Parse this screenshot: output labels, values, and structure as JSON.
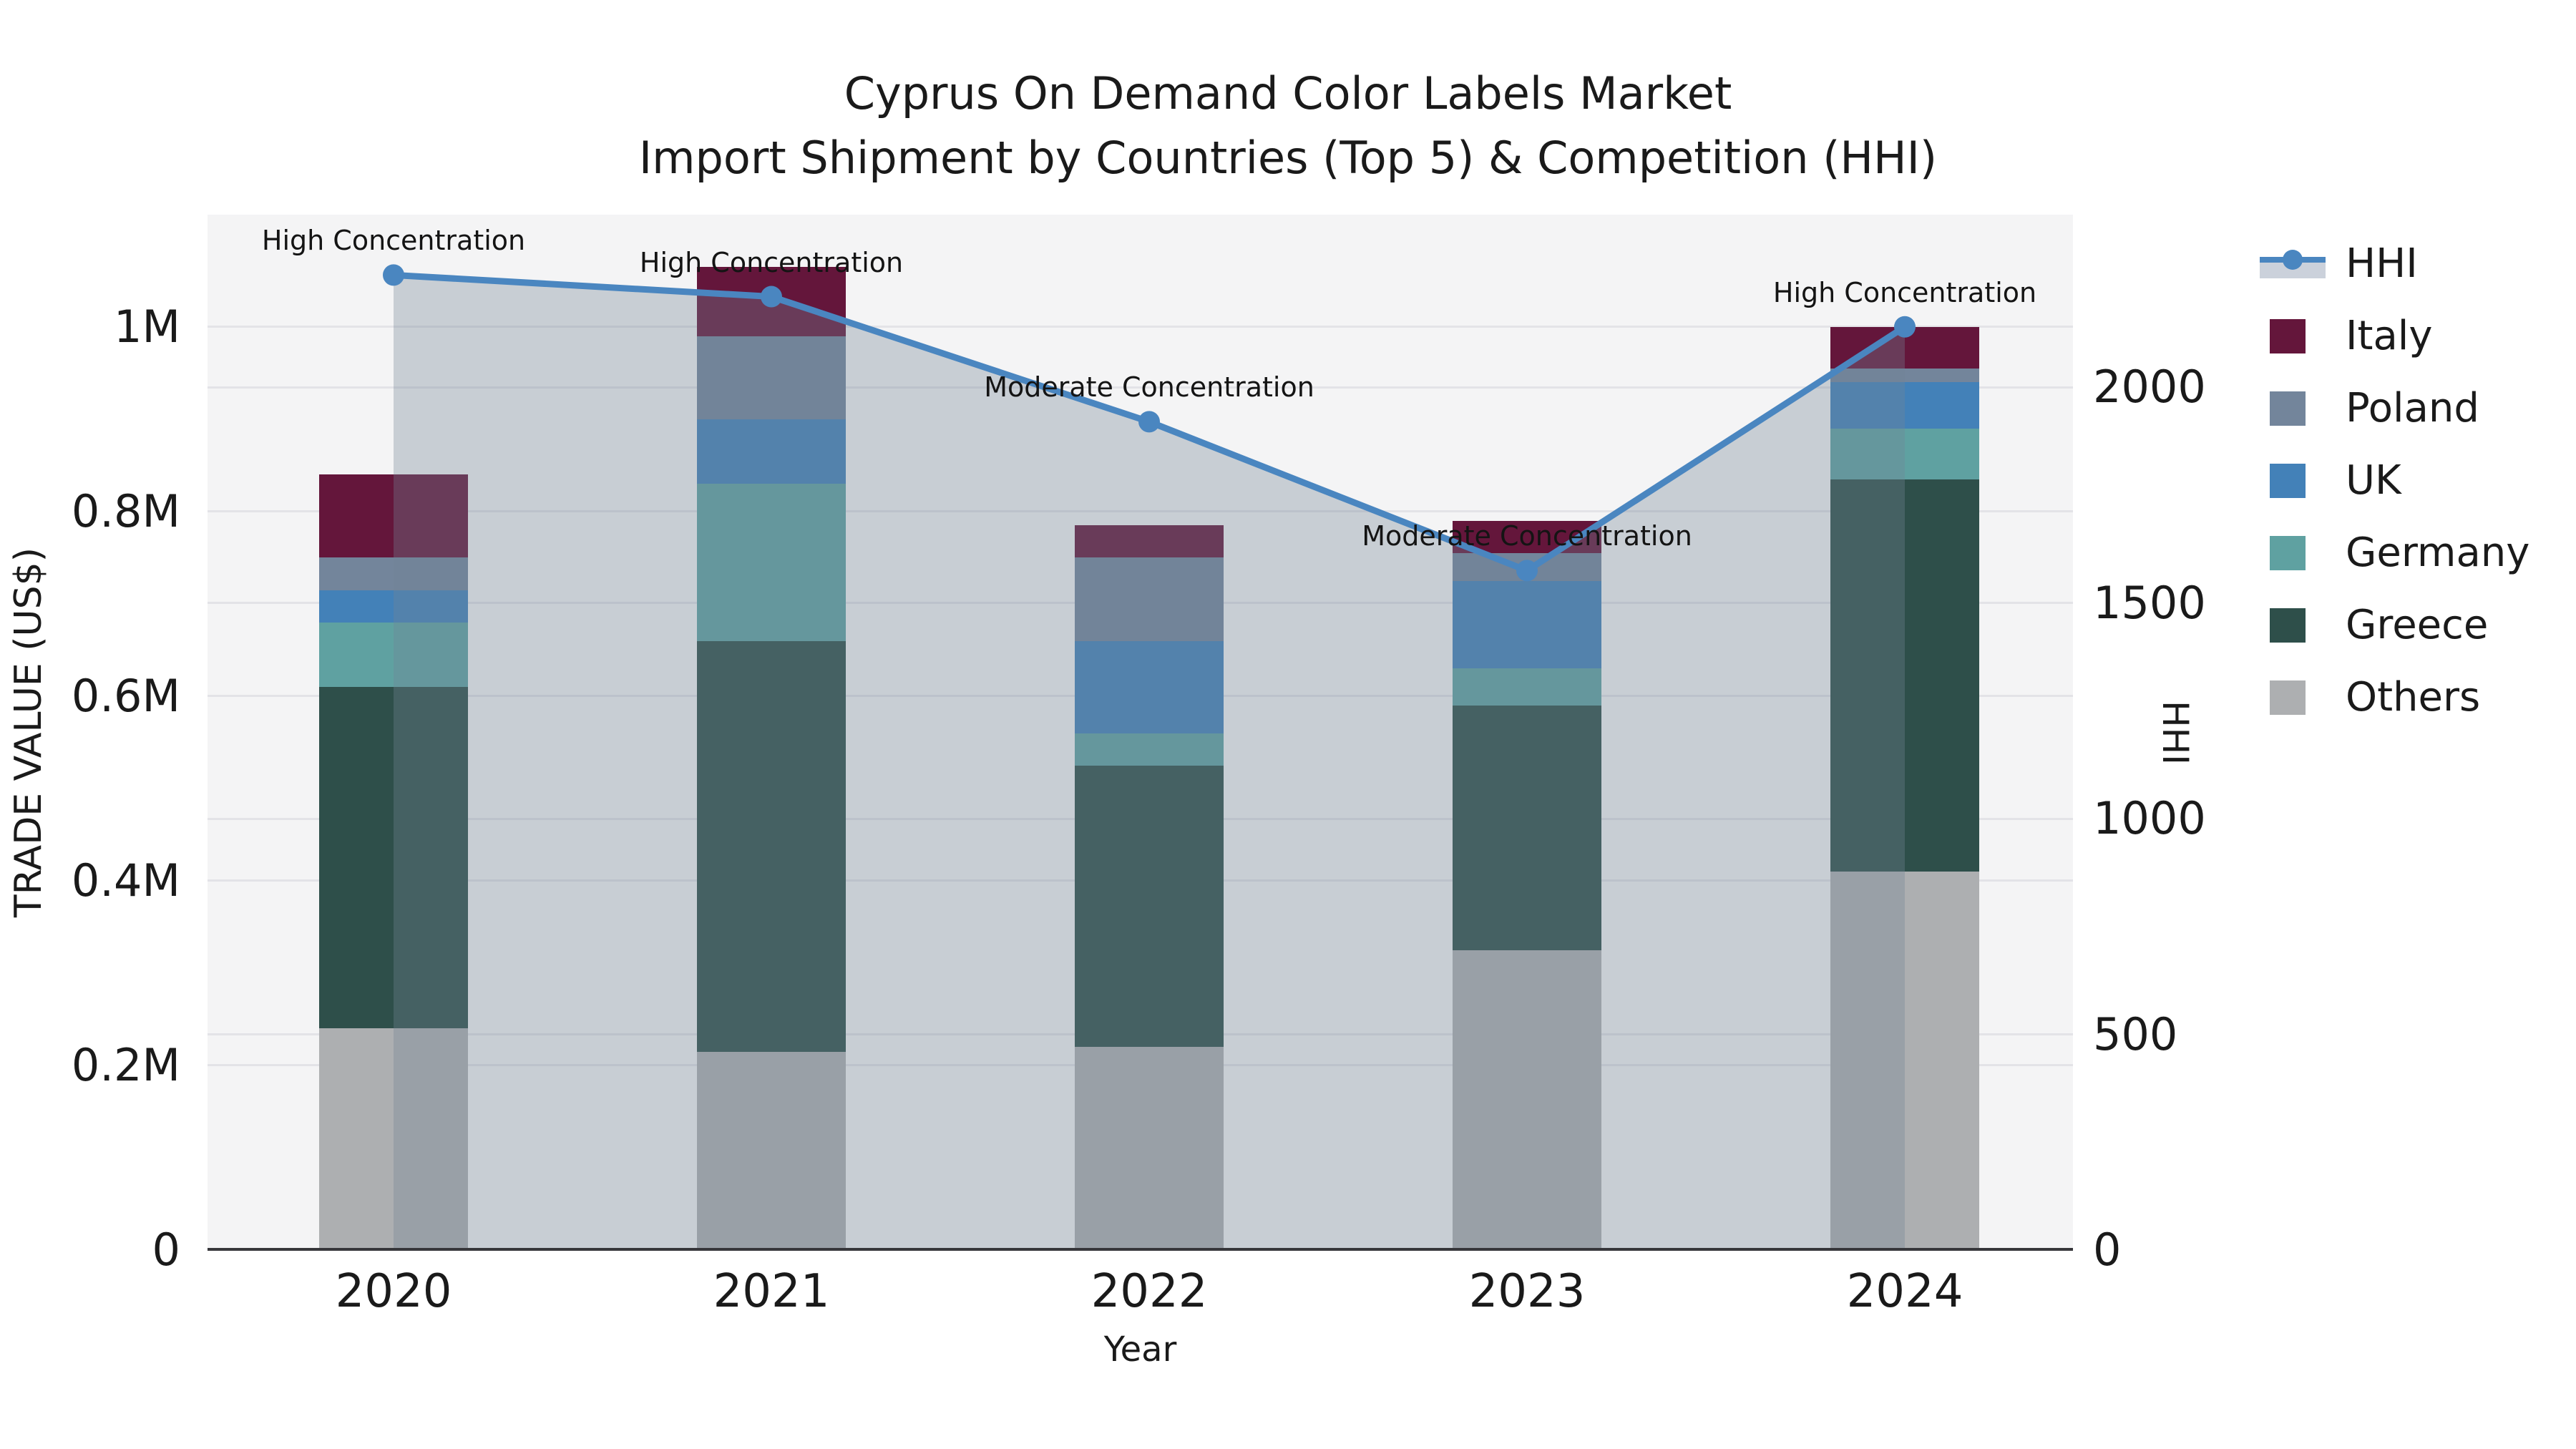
{
  "title": {
    "line1": "Cyprus On Demand Color Labels Market",
    "line2": "Import Shipment by Countries (Top 5) & Competition (HHI)"
  },
  "axes": {
    "x_label": "Year",
    "y_left_label": "TRADE VALUE (US$)",
    "y_right_label": "HHI"
  },
  "chart_data": {
    "type": "combo_stacked_bar_line",
    "categories": [
      "2020",
      "2021",
      "2022",
      "2023",
      "2024"
    ],
    "series": [
      {
        "name": "Italy",
        "color": "#64163B",
        "values": [
          90000,
          75000,
          35000,
          35000,
          45000
        ]
      },
      {
        "name": "Poland",
        "color": "#73859B",
        "values": [
          35000,
          90000,
          90000,
          30000,
          15000
        ]
      },
      {
        "name": "UK",
        "color": "#4381B8",
        "values": [
          35000,
          70000,
          100000,
          95000,
          50000
        ]
      },
      {
        "name": "Germany",
        "color": "#5FA1A1",
        "values": [
          70000,
          170000,
          35000,
          40000,
          55000
        ]
      },
      {
        "name": "Greece",
        "color": "#2E4F4A",
        "values": [
          370000,
          445000,
          305000,
          265000,
          425000
        ]
      },
      {
        "name": "Others",
        "color": "#ADAFB1",
        "values": [
          240000,
          215000,
          220000,
          325000,
          410000
        ]
      }
    ],
    "stack_order_bottom_to_top": [
      "Others",
      "Greece",
      "Germany",
      "UK",
      "Poland",
      "Italy"
    ],
    "bar_totals": [
      840000,
      1065000,
      785000,
      790000,
      1000000
    ],
    "line_series": {
      "name": "HHI",
      "color": "#4A86C0",
      "area_fill": "rgba(115,132,150,0.34)",
      "values": [
        2260,
        2210,
        1920,
        1575,
        2140
      ]
    },
    "annotations": [
      {
        "category": "2020",
        "text": "High Concentration"
      },
      {
        "category": "2021",
        "text": "High Concentration"
      },
      {
        "category": "2022",
        "text": "Moderate Concentration"
      },
      {
        "category": "2023",
        "text": "Moderate Concentration"
      },
      {
        "category": "2024",
        "text": "High Concentration"
      }
    ],
    "left_axis": {
      "label": "TRADE VALUE (US$)",
      "ticks": [
        {
          "label": "0",
          "value": 0
        },
        {
          "label": "0.2M",
          "value": 200000
        },
        {
          "label": "0.4M",
          "value": 400000
        },
        {
          "label": "0.6M",
          "value": 600000
        },
        {
          "label": "0.8M",
          "value": 800000
        },
        {
          "label": "1M",
          "value": 1000000
        }
      ],
      "top_value": 1121700
    },
    "right_axis": {
      "label": "HHI",
      "ticks": [
        {
          "label": "0",
          "value": 0
        },
        {
          "label": "500",
          "value": 500
        },
        {
          "label": "1000",
          "value": 1000
        },
        {
          "label": "1500",
          "value": 1500
        },
        {
          "label": "2000",
          "value": 2000
        }
      ],
      "top_value": 2400
    },
    "legend_order": [
      "HHI",
      "Italy",
      "Poland",
      "UK",
      "Germany",
      "Greece",
      "Others"
    ],
    "colors": {
      "figure_background": "#ffffff",
      "plot_background": "#f4f4f5",
      "gridline": "#e3e3e7",
      "axis_spine": "#37373b",
      "text": "#1a1a1a",
      "hhi_line": "#4A86C0",
      "hhi_legend_band": "#cbd1db"
    },
    "grid": true,
    "legend_position": "right"
  }
}
